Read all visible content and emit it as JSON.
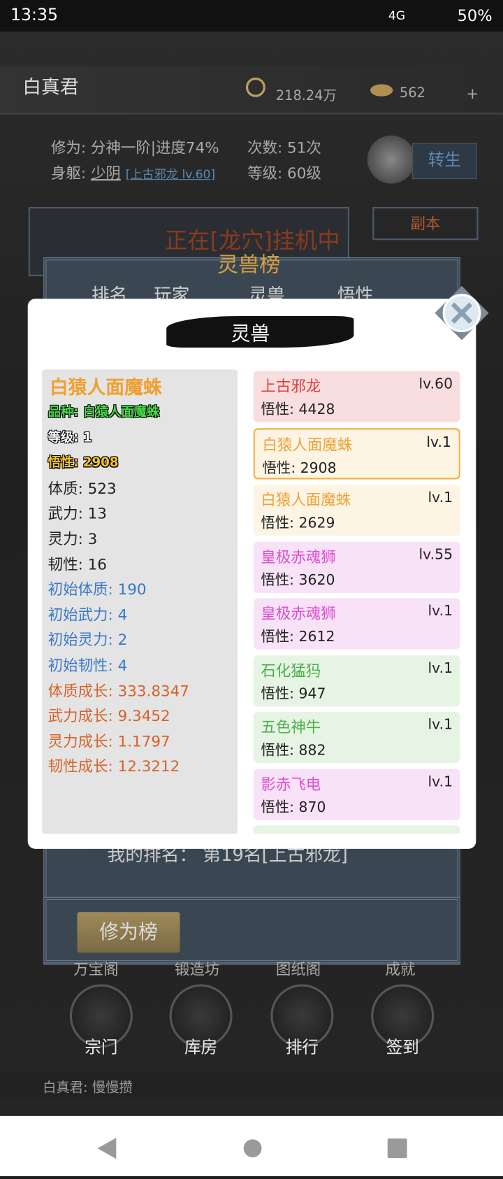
{
  "status_bar": {
    "time": "13:35",
    "network": "4G",
    "battery": "50%"
  },
  "header": {
    "player": "白真君",
    "coins": "218.24万",
    "ingots": "562",
    "add": "+"
  },
  "profile": {
    "cultivation": "修为: 分神一阶|进度74%",
    "count": "次数: 51次",
    "body_label": "身躯: ",
    "body": "少阴",
    "body_pet": "[上古邪龙 lv.60]",
    "level": "等级: 60级",
    "rebirth": "转生"
  },
  "side_button": "副本",
  "idle_banner": "正在[龙穴]挂机中",
  "ranking": {
    "title": "灵兽榜",
    "columns": [
      "排名",
      "玩家",
      "灵兽",
      "悟性"
    ],
    "my_rank": "我的排名： 第19名[上古邪龙]",
    "tab": "修为榜"
  },
  "menu_row": [
    "万宝阁",
    "锻造坊",
    "图纸阁",
    "成就"
  ],
  "nav_icons": [
    "宗门",
    "库房",
    "排行",
    "签到"
  ],
  "chat": "白真君: 慢慢攒",
  "dialog": {
    "title": "灵兽",
    "detail": {
      "name": "白猿人面魔蛛",
      "lines": [
        {
          "text": "品种: 白猿人面魔蛛",
          "color": "#46d846"
        },
        {
          "text": "等级: 1",
          "color": "#ffffff"
        },
        {
          "text": "悟性: 2908",
          "color": "#f2c230"
        },
        {
          "text": "体质: 523",
          "color": "#222222"
        },
        {
          "text": "武力: 13",
          "color": "#222222"
        },
        {
          "text": "灵力: 3",
          "color": "#222222"
        },
        {
          "text": "韧性: 16",
          "color": "#222222"
        },
        {
          "text": "初始体质: 190",
          "color": "#3a78c8"
        },
        {
          "text": "初始武力: 4",
          "color": "#3a78c8"
        },
        {
          "text": "初始灵力: 2",
          "color": "#3a78c8"
        },
        {
          "text": "初始韧性: 4",
          "color": "#3a78c8"
        },
        {
          "text": "体质成长: 333.8347",
          "color": "#d8622a"
        },
        {
          "text": "武力成长: 9.3452",
          "color": "#d8622a"
        },
        {
          "text": "灵力成长: 1.1797",
          "color": "#d8622a"
        },
        {
          "text": "韧性成长: 12.3212",
          "color": "#d8622a"
        }
      ]
    },
    "list": [
      {
        "name": "上古邪龙",
        "level": "lv.60",
        "stat": "悟性: 4428",
        "color": "#e03a3a",
        "background": "#f8dede"
      },
      {
        "name": "白猿人面魔蛛",
        "level": "lv.1",
        "stat": "悟性: 2908",
        "color": "#eea23a",
        "background": "#fdf4e4"
      },
      {
        "name": "白猿人面魔蛛",
        "level": "lv.1",
        "stat": "悟性: 2629",
        "color": "#eea23a",
        "background": "#fdf4e4"
      },
      {
        "name": "皇极赤魂狮",
        "level": "lv.55",
        "stat": "悟性: 3620",
        "color": "#dc4ed0",
        "background": "#f8e2f7"
      },
      {
        "name": "皇极赤魂狮",
        "level": "lv.1",
        "stat": "悟性: 2612",
        "color": "#dc4ed0",
        "background": "#f8e2f7"
      },
      {
        "name": "石化猛犸",
        "level": "lv.1",
        "stat": "悟性: 947",
        "color": "#4cb04c",
        "background": "#e6f4e4"
      },
      {
        "name": "五色神牛",
        "level": "lv.1",
        "stat": "悟性: 882",
        "color": "#4cb04c",
        "background": "#e6f4e4"
      },
      {
        "name": "影赤飞电",
        "level": "lv.1",
        "stat": "悟性: 870",
        "color": "#dc4ed0",
        "background": "#f8e2f7"
      }
    ]
  }
}
